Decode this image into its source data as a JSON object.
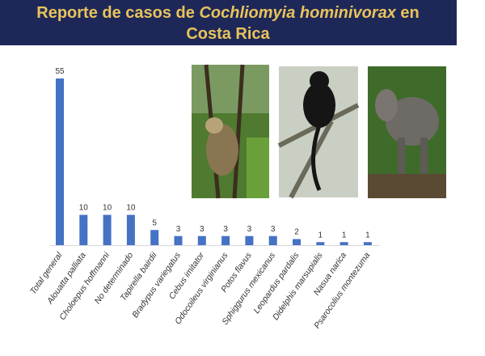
{
  "chart_data": {
    "type": "bar",
    "title_parts": [
      "Reporte de casos de ",
      "Cochliomyia hominivorax",
      " en",
      "Costa Rica"
    ],
    "categories": [
      "Total general",
      "Alouatta palliata",
      "Choloepus hoffmanni",
      "No determinado",
      "Tapirella bairdii",
      "Bradypus variegatus",
      "Cebus imitator",
      "Odocoileus virginianus",
      "Potos flavus",
      "Sphiggurus mexicanus",
      "Leopardus pardalis",
      "Didelphis marsupialis",
      "Nasua narica",
      "Psarocolius montezuma"
    ],
    "values": [
      55,
      10,
      10,
      10,
      5,
      3,
      3,
      3,
      3,
      3,
      2,
      1,
      1,
      1
    ],
    "color": "#4472c4",
    "ylim": [
      0,
      55
    ]
  }
}
